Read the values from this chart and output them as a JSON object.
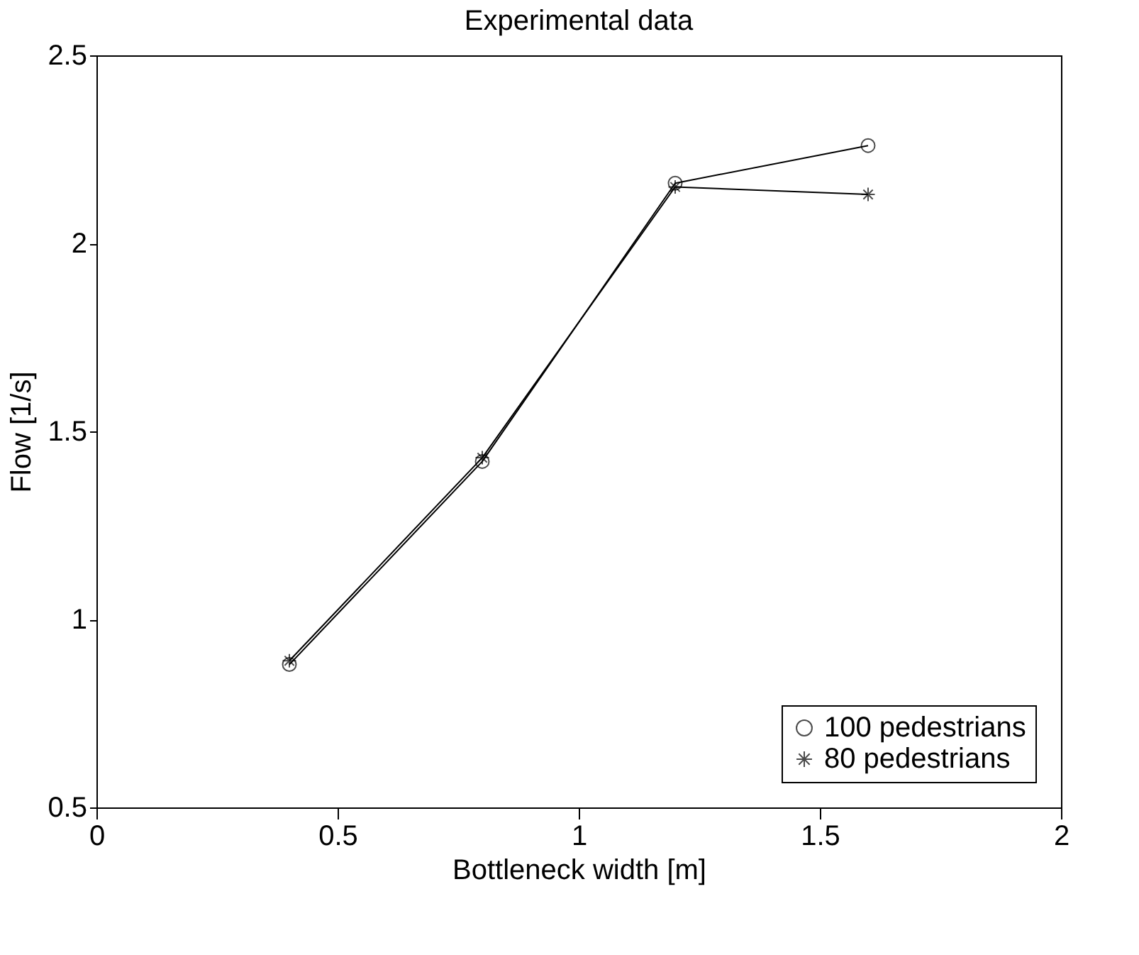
{
  "chart_data": {
    "type": "line",
    "title": "Experimental data",
    "xlabel": "Bottleneck width [m]",
    "ylabel": "Flow [1/s]",
    "x": [
      0.4,
      0.8,
      1.2,
      1.6
    ],
    "series": [
      {
        "name": "100 pedestrians",
        "color": "#000000",
        "marker": "circle",
        "values": [
          0.88,
          1.42,
          2.16,
          2.26
        ]
      },
      {
        "name": "80 pedestrians",
        "color": "#000000",
        "marker": "cross",
        "values": [
          0.89,
          1.43,
          2.15,
          2.13
        ]
      }
    ],
    "xlim": [
      0,
      2
    ],
    "xticks": [
      0,
      0.5,
      1,
      1.5,
      2
    ],
    "ylim": [
      0.5,
      2.5
    ],
    "yticks": [
      0.5,
      1,
      1.5,
      2,
      2.5
    ],
    "grid": false,
    "legend": "bottom right",
    "line_style": "solid"
  }
}
